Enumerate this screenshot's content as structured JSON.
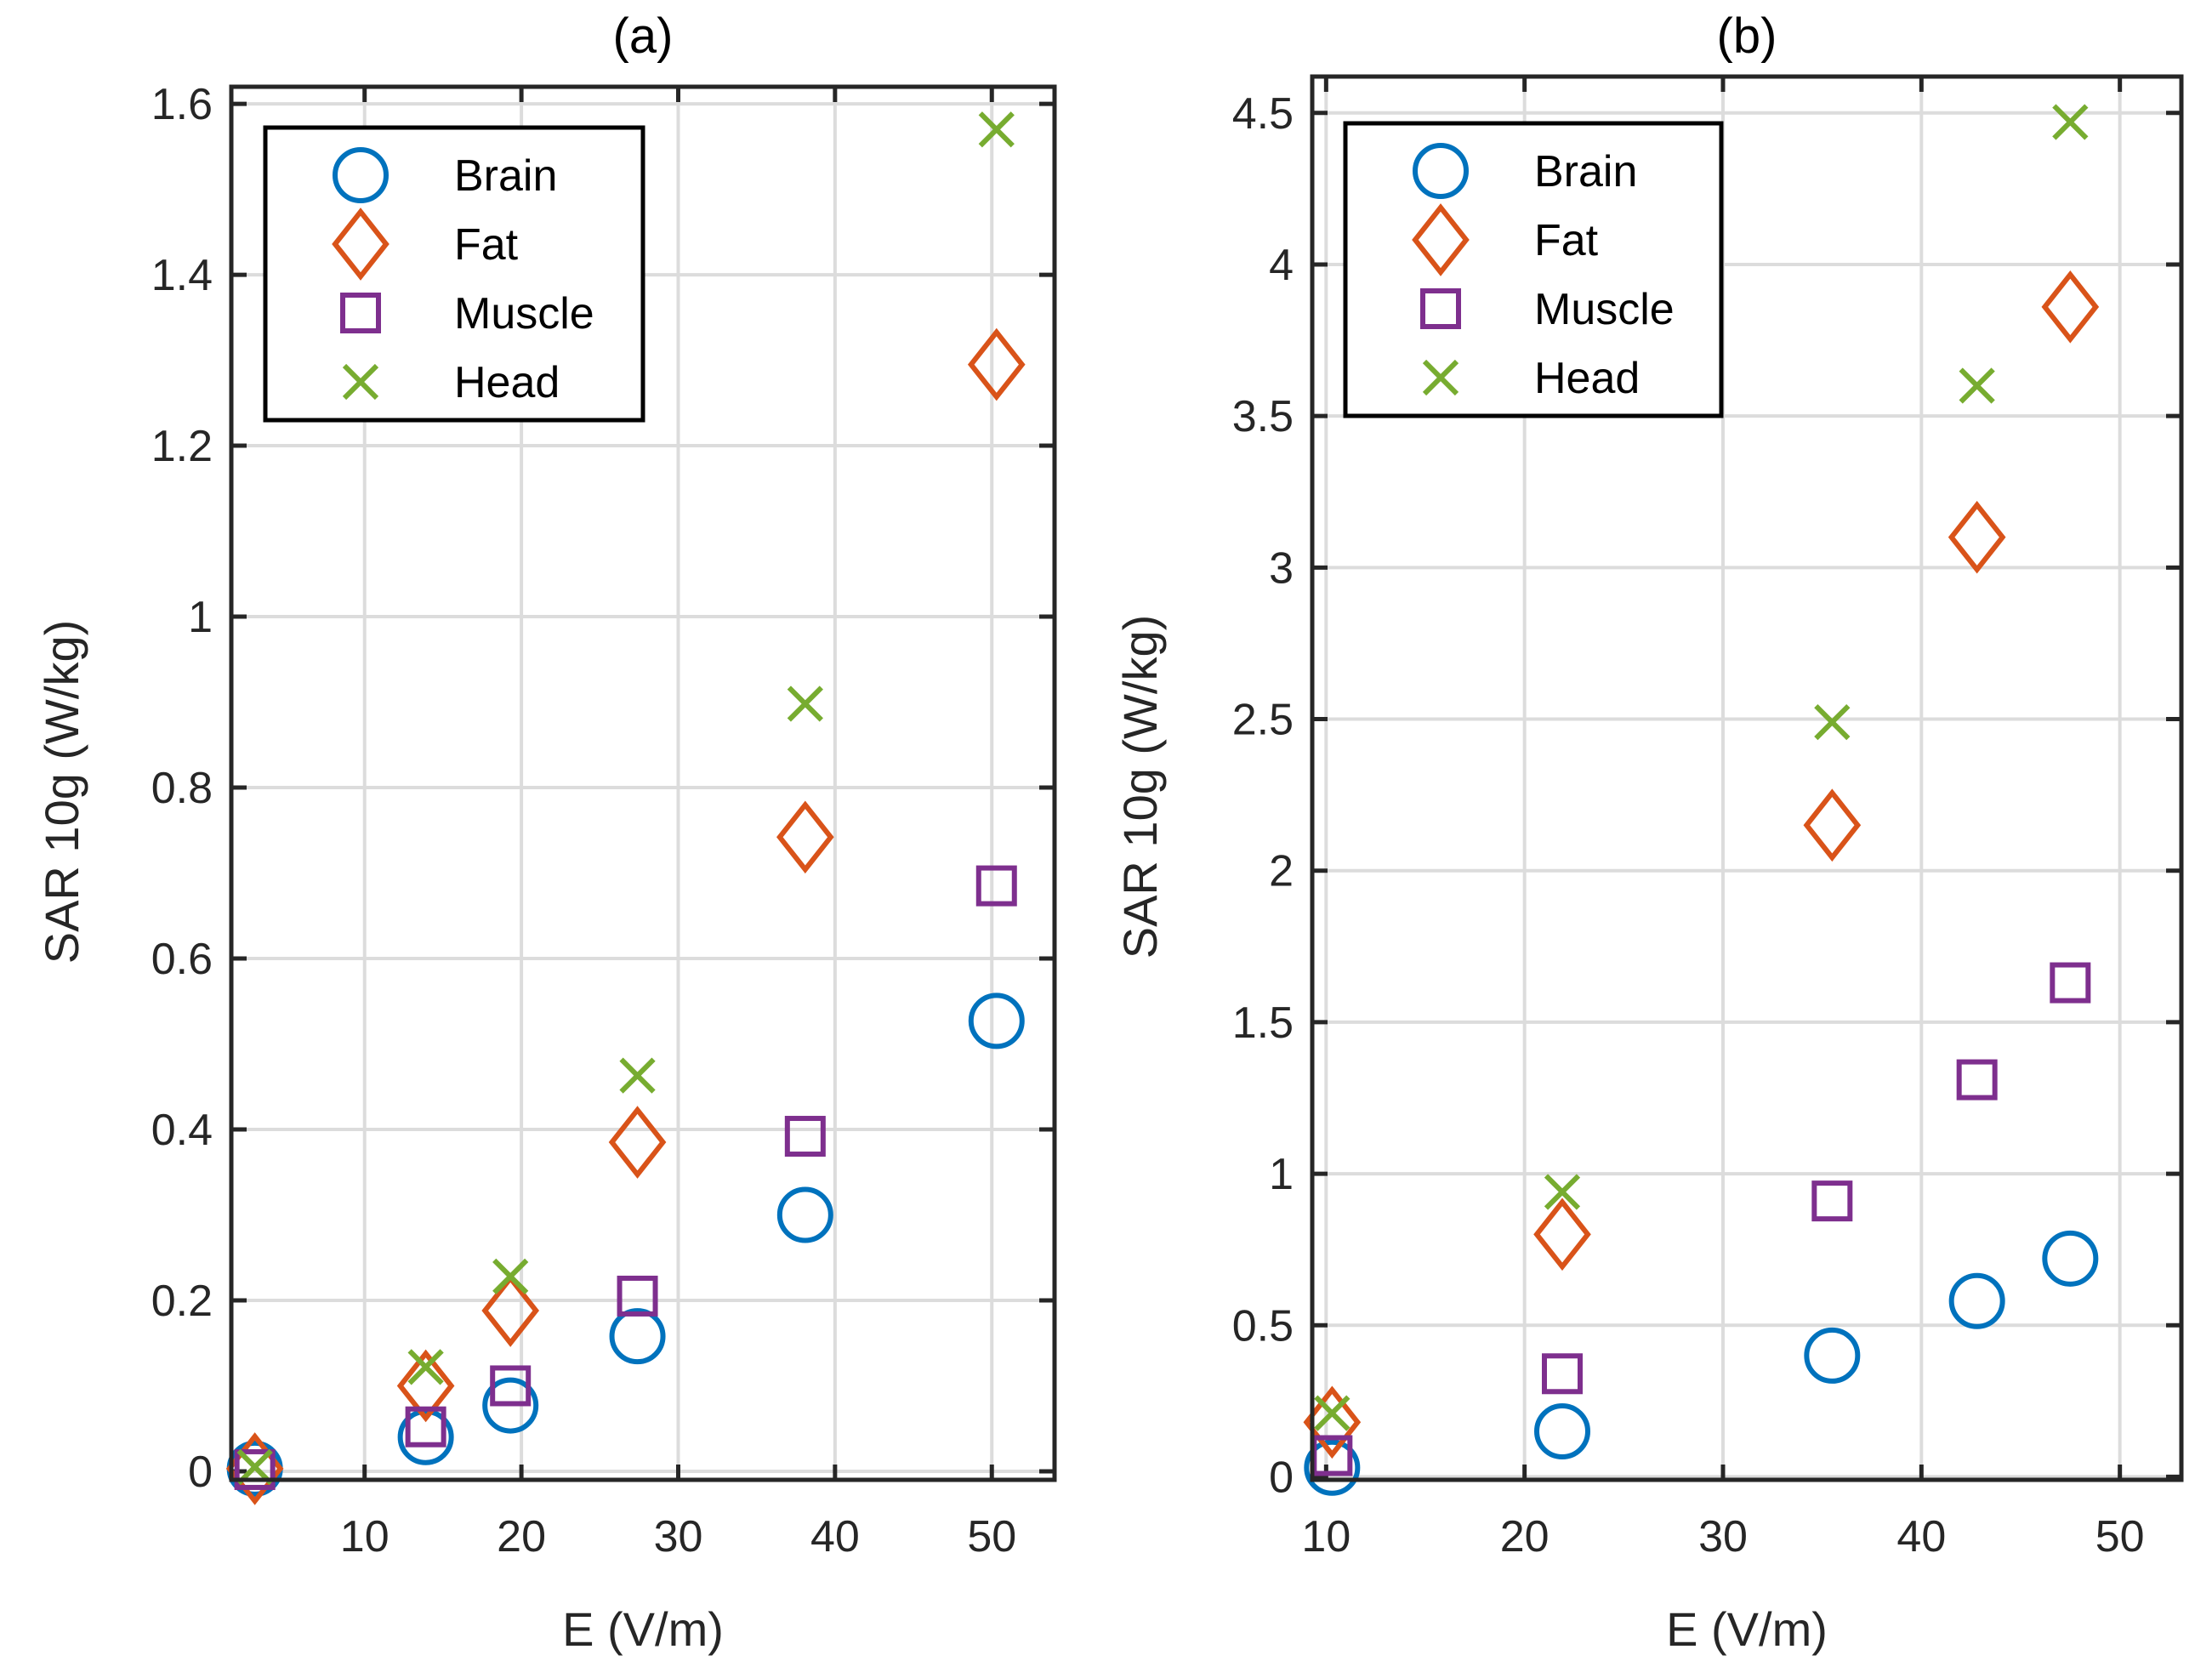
{
  "chart_data": [
    {
      "type": "scatter",
      "title": "(a)",
      "xlabel": "E (V/m)",
      "ylabel": "SAR 10g (W/kg)",
      "xlim": [
        1.5,
        54
      ],
      "ylim": [
        -0.01,
        1.62
      ],
      "xticks": [
        10,
        20,
        30,
        40,
        50
      ],
      "xtick_labels": [
        "10",
        "20",
        "30",
        "40",
        "50"
      ],
      "yticks": [
        0,
        0.2,
        0.4,
        0.6,
        0.8,
        1,
        1.2,
        1.4,
        1.6
      ],
      "ytick_labels": [
        "0",
        "0.2",
        "0.4",
        "0.6",
        "0.8",
        "1",
        "1.2",
        "1.4",
        "1.6"
      ],
      "grid": true,
      "legend_position": "top-left",
      "series": [
        {
          "name": "Brain",
          "marker": "circle",
          "color": "#0072BD",
          "x": [
            3,
            13.9,
            19.3,
            27.4,
            38.1,
            50.3
          ],
          "y": [
            0.003,
            0.04,
            0.077,
            0.158,
            0.3,
            0.527
          ]
        },
        {
          "name": "Fat",
          "marker": "diamond",
          "color": "#D95319",
          "x": [
            3,
            13.9,
            19.3,
            27.4,
            38.1,
            50.3
          ],
          "y": [
            0.003,
            0.1,
            0.188,
            0.385,
            0.742,
            1.295
          ]
        },
        {
          "name": "Muscle",
          "marker": "square",
          "color": "#7E2F8E",
          "x": [
            3,
            13.9,
            19.3,
            27.4,
            38.1,
            50.3
          ],
          "y": [
            0.002,
            0.052,
            0.1,
            0.205,
            0.392,
            0.685
          ]
        },
        {
          "name": "Head",
          "marker": "x",
          "color": "#77AC30",
          "x": [
            3,
            13.9,
            19.3,
            27.4,
            38.1,
            50.3
          ],
          "y": [
            0.005,
            0.122,
            0.228,
            0.463,
            0.898,
            1.57
          ]
        }
      ]
    },
    {
      "type": "scatter",
      "title": "(b)",
      "xlabel": "E (V/m)",
      "ylabel": "SAR 10g (W/kg)",
      "xlim": [
        9.3,
        53.1
      ],
      "ylim": [
        -0.01,
        4.62
      ],
      "xticks": [
        10,
        20,
        30,
        40,
        50
      ],
      "xtick_labels": [
        "10",
        "20",
        "30",
        "40",
        "50"
      ],
      "yticks": [
        0,
        0.5,
        1,
        1.5,
        2,
        2.5,
        3,
        3.5,
        4,
        4.5
      ],
      "ytick_labels": [
        "0",
        "0.5",
        "1",
        "1.5",
        "2",
        "2.5",
        "3",
        "3.5",
        "4",
        "4.5"
      ],
      "grid": true,
      "legend_position": "top-left",
      "series": [
        {
          "name": "Brain",
          "marker": "circle",
          "color": "#0072BD",
          "x": [
            10.3,
            21.9,
            35.5,
            42.8,
            47.5
          ],
          "y": [
            0.03,
            0.15,
            0.4,
            0.58,
            0.72
          ]
        },
        {
          "name": "Fat",
          "marker": "diamond",
          "color": "#D95319",
          "x": [
            10.3,
            21.9,
            35.5,
            42.8,
            47.5
          ],
          "y": [
            0.18,
            0.8,
            2.15,
            3.1,
            3.86
          ]
        },
        {
          "name": "Muscle",
          "marker": "square",
          "color": "#7E2F8E",
          "x": [
            10.3,
            21.9,
            35.5,
            42.8,
            47.5
          ],
          "y": [
            0.07,
            0.34,
            0.91,
            1.31,
            1.63
          ]
        },
        {
          "name": "Head",
          "marker": "x",
          "color": "#77AC30",
          "x": [
            10.3,
            21.9,
            35.5,
            42.8,
            47.5
          ],
          "y": [
            0.21,
            0.94,
            2.49,
            3.6,
            4.47
          ]
        }
      ]
    }
  ]
}
